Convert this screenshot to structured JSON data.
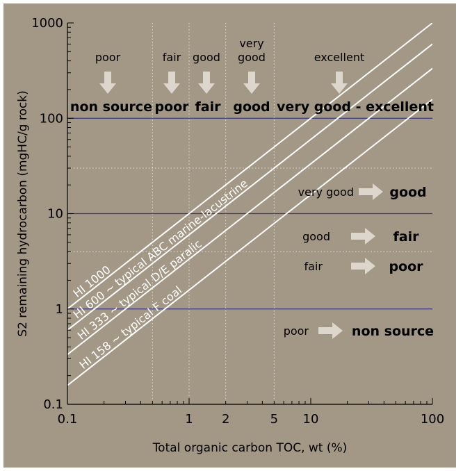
{
  "chart_data": {
    "type": "line",
    "xscale": "log",
    "yscale": "log",
    "xlim": [
      0.1,
      100
    ],
    "ylim": [
      0.1,
      1000
    ],
    "xlabel": "Total organic carbon TOC, wt (%)",
    "ylabel": "S2 remaining hydrocarbon (mgHC/g rock)",
    "x_ticks": [
      "0.1",
      "1",
      "2",
      "5",
      "10",
      "100"
    ],
    "y_ticks": [
      "0.1",
      "1",
      "10",
      "100",
      "1000"
    ],
    "hlines": [
      1,
      10,
      100
    ],
    "dotted_h": [
      4,
      30
    ],
    "dotted_v": [
      0.5,
      1,
      2,
      5
    ],
    "series": [
      {
        "name": "HI 1000",
        "hi": 1000,
        "x": [
          0.1,
          100
        ],
        "y": [
          1.0,
          1000
        ]
      },
      {
        "name": "HI 600 ~ typical ABC marine-lacustrine",
        "hi": 600,
        "x": [
          0.1,
          100
        ],
        "y": [
          0.6,
          600
        ]
      },
      {
        "name": "HI 333 ~ typical D/E paralic",
        "hi": 333,
        "x": [
          0.1,
          100
        ],
        "y": [
          0.333,
          333
        ]
      },
      {
        "name": "HI 158 ~ typical F coal",
        "hi": 158,
        "x": [
          0.1,
          100
        ],
        "y": [
          0.158,
          158
        ]
      }
    ],
    "toc_classes": [
      {
        "label": "poor",
        "class": "non source",
        "x": 0.2
      },
      {
        "label": "fair",
        "class": "poor",
        "x": 0.7
      },
      {
        "label": "good",
        "class": "fair",
        "x": 1.4
      },
      {
        "label": "very\ngood",
        "class": "good",
        "x": 3.0
      },
      {
        "label": "excellent",
        "class": "very good - excellent",
        "x": 17
      }
    ],
    "s2_classes": [
      {
        "from": "very good",
        "to": "good",
        "y": 22
      },
      {
        "from": "good",
        "to": "fair",
        "y": 6.6
      },
      {
        "from": "fair",
        "to": "poor",
        "y": 3.2
      },
      {
        "from": "poor",
        "to": "non source",
        "y": 0.65
      }
    ]
  },
  "colors": {
    "background": "#a39785",
    "hline": "#3a3a8c",
    "dotted": "#e8e2d6",
    "lines": "#ffffff",
    "arrow": "#ddd6cc"
  }
}
